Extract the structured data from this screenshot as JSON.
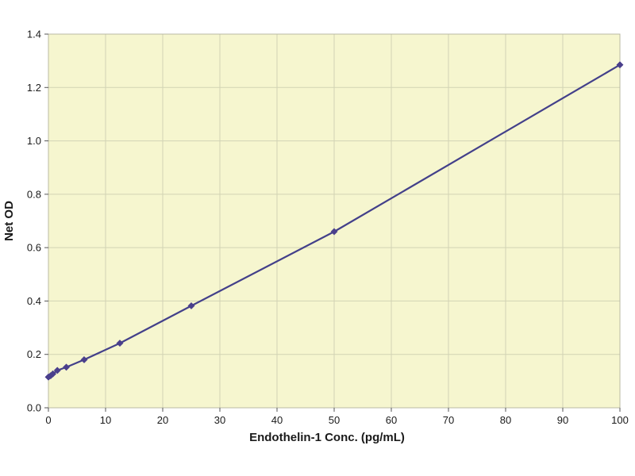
{
  "chart_data": {
    "type": "line",
    "title": "",
    "xlabel": "Endothelin-1 Conc. (pg/mL)",
    "ylabel": "Net OD",
    "xlim": [
      0,
      100
    ],
    "ylim": [
      0.0,
      1.4
    ],
    "x_ticks": [
      0,
      10,
      20,
      30,
      40,
      50,
      60,
      70,
      80,
      90,
      100
    ],
    "x_tick_labels": [
      "0",
      "10",
      "20",
      "30",
      "40",
      "50",
      "60",
      "70",
      "80",
      "90",
      "100"
    ],
    "y_ticks": [
      0.0,
      0.2,
      0.4,
      0.6,
      0.8,
      1.0,
      1.2,
      1.4
    ],
    "y_tick_labels": [
      "0.0",
      "0.2",
      "0.4",
      "0.6",
      "0.8",
      "1.0",
      "1.2",
      "1.4"
    ],
    "grid": true,
    "series": [
      {
        "x": [
          0,
          0.39,
          0.78,
          1.56,
          3.13,
          6.25,
          12.5,
          25,
          50,
          100
        ],
        "y": [
          0.115,
          0.12,
          0.127,
          0.14,
          0.152,
          0.18,
          0.242,
          0.382,
          0.66,
          1.285
        ]
      }
    ],
    "colors": {
      "plot_background": "#f6f6cf",
      "grid": "#d2d3b4",
      "frame": "#b9b9a3",
      "line": "#43408a",
      "marker": "#4a3f8c",
      "text": "#1a1a1a"
    }
  }
}
